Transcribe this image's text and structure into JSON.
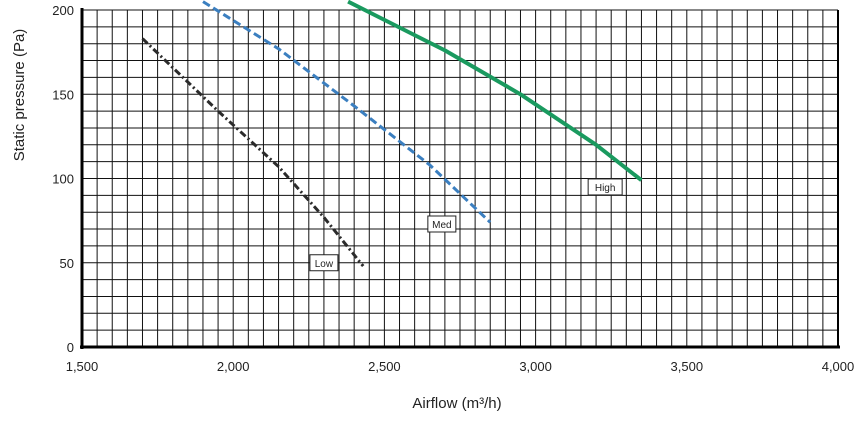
{
  "chart_data": {
    "type": "line",
    "xlabel": "Airflow (m³/h)",
    "ylabel": "Static pressure (Pa)",
    "xlim": [
      1500,
      4000
    ],
    "ylim": [
      0,
      200
    ],
    "x_ticks": [
      1500,
      2000,
      2500,
      3000,
      3500,
      4000
    ],
    "x_tick_labels": [
      "1,500",
      "2,000",
      "2,500",
      "3,000",
      "3,500",
      "4,000"
    ],
    "y_ticks": [
      0,
      50,
      100,
      150,
      200
    ],
    "y_tick_labels": [
      "0",
      "50",
      "100",
      "150",
      "200"
    ],
    "grid": true,
    "legend": "inline labels",
    "series": [
      {
        "name": "Low",
        "color": "#2b2b2b",
        "dash": "dash-dot",
        "x": [
          1700,
          1950,
          2150,
          2300,
          2430
        ],
        "y": [
          183,
          140,
          107,
          77,
          48
        ],
        "label_at": [
          2300,
          50
        ]
      },
      {
        "name": "Med",
        "color": "#3b7fc0",
        "dash": "dashed",
        "x": [
          1900,
          2150,
          2400,
          2650,
          2850
        ],
        "y": [
          205,
          177,
          143,
          108,
          74
        ],
        "label_at": [
          2690,
          73
        ]
      },
      {
        "name": "High",
        "color": "#1a9a5f",
        "dash": "solid",
        "x": [
          2380,
          2700,
          2950,
          3200,
          3350
        ],
        "y": [
          205,
          176,
          150,
          120,
          99
        ],
        "label_at": [
          3230,
          95
        ]
      }
    ]
  }
}
